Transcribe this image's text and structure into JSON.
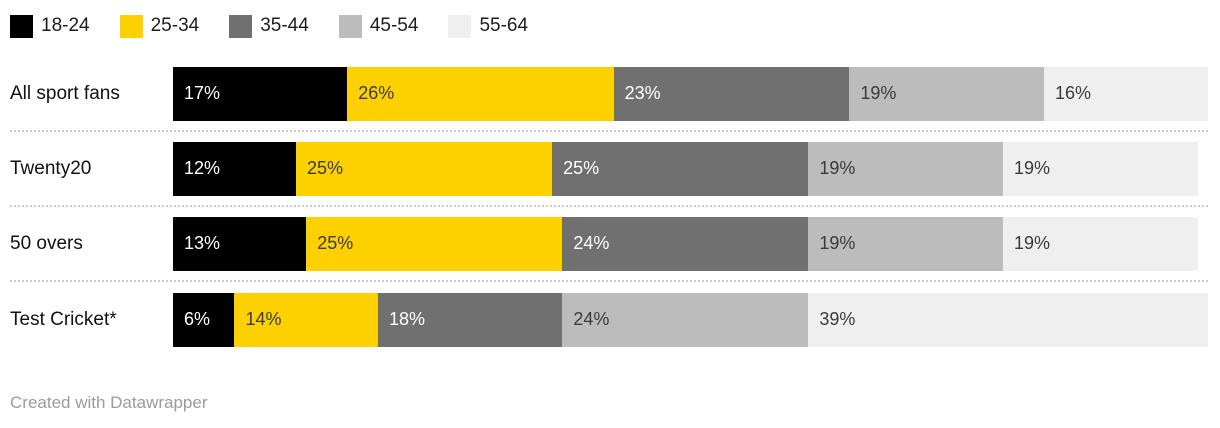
{
  "chart_data": {
    "type": "bar",
    "stacked": true,
    "orientation": "horizontal",
    "title": "",
    "value_suffix": "%",
    "grid": false,
    "legend_position": "top",
    "legend": [
      {
        "label": "18-24",
        "color": "#000000",
        "text_color": "#ffffff"
      },
      {
        "label": "25-34",
        "color": "#fdd000",
        "text_color": "#3a3a3a"
      },
      {
        "label": "35-44",
        "color": "#707070",
        "text_color": "#ffffff"
      },
      {
        "label": "45-54",
        "color": "#bcbcbc",
        "text_color": "#3a3a3a"
      },
      {
        "label": "55-64",
        "color": "#efefef",
        "text_color": "#3a3a3a"
      }
    ],
    "categories": [
      "All sport fans",
      "Twenty20",
      "50 overs",
      "Test Cricket*"
    ],
    "series": [
      {
        "name": "18-24",
        "values": [
          17,
          12,
          13,
          6
        ]
      },
      {
        "name": "25-34",
        "values": [
          26,
          25,
          25,
          14
        ]
      },
      {
        "name": "35-44",
        "values": [
          23,
          25,
          24,
          18
        ]
      },
      {
        "name": "45-54",
        "values": [
          19,
          19,
          19,
          24
        ]
      },
      {
        "name": "55-64",
        "values": [
          16,
          19,
          19,
          39
        ]
      }
    ]
  },
  "footer": {
    "credit": "Created with Datawrapper"
  }
}
